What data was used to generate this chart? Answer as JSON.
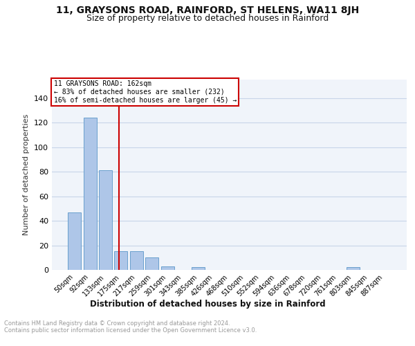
{
  "title": "11, GRAYSONS ROAD, RAINFORD, ST HELENS, WA11 8JH",
  "subtitle": "Size of property relative to detached houses in Rainford",
  "xlabel": "Distribution of detached houses by size in Rainford",
  "ylabel": "Number of detached properties",
  "footnote": "Contains HM Land Registry data © Crown copyright and database right 2024.\nContains public sector information licensed under the Open Government Licence v3.0.",
  "bar_labels": [
    "50sqm",
    "92sqm",
    "133sqm",
    "175sqm",
    "217sqm",
    "259sqm",
    "301sqm",
    "343sqm",
    "385sqm",
    "426sqm",
    "468sqm",
    "510sqm",
    "552sqm",
    "594sqm",
    "636sqm",
    "678sqm",
    "720sqm",
    "761sqm",
    "803sqm",
    "845sqm",
    "887sqm"
  ],
  "bar_values": [
    47,
    124,
    81,
    15,
    15,
    10,
    3,
    0,
    2,
    0,
    0,
    0,
    0,
    0,
    0,
    0,
    0,
    0,
    2,
    0,
    0
  ],
  "bar_color": "#aec6e8",
  "bar_edge_color": "#5a96c8",
  "vline_color": "#cc0000",
  "vline_label": "11 GRAYSONS ROAD: 162sqm",
  "annotation_line1": "← 83% of detached houses are smaller (232)",
  "annotation_line2": "16% of semi-detached houses are larger (45) →",
  "annotation_box_color": "#cc0000",
  "ylim": [
    0,
    155
  ],
  "yticks": [
    0,
    20,
    40,
    60,
    80,
    100,
    120,
    140
  ],
  "grid_color": "#c8d4e8",
  "background_color": "#f0f4fa",
  "title_fontsize": 10,
  "subtitle_fontsize": 9,
  "footnote_color": "#999999"
}
